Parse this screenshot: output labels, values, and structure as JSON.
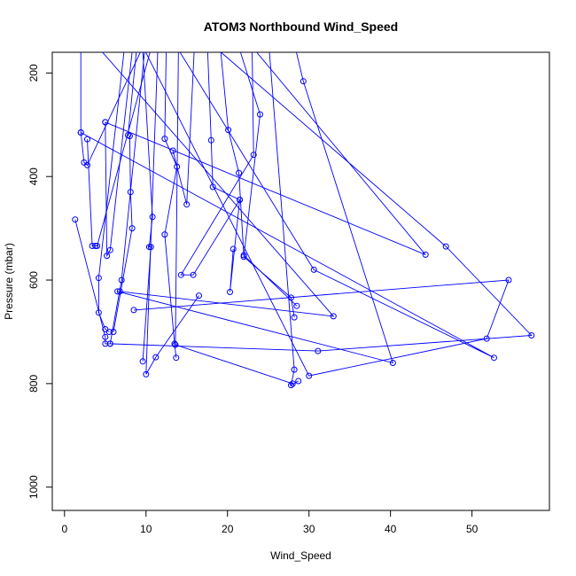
{
  "chart_data": {
    "type": "line",
    "title": "ATOM3 Northbound Wind_Speed",
    "xlabel": "Wind_Speed",
    "ylabel": "Pressure (mbar)",
    "xlim": [
      -1.5,
      59.5
    ],
    "ylim": [
      1045,
      160
    ],
    "y_reversed": true,
    "grid": false,
    "line_color": "#0000ff",
    "marker": "open-circle",
    "x_ticks": [
      {
        "value": 0,
        "label": "0"
      },
      {
        "value": 10,
        "label": "10"
      },
      {
        "value": 20,
        "label": "20"
      },
      {
        "value": 30,
        "label": "30"
      },
      {
        "value": 40,
        "label": "40"
      },
      {
        "value": 50,
        "label": "50"
      }
    ],
    "y_ticks": [
      {
        "value": 200,
        "label": "200"
      },
      {
        "value": 400,
        "label": "400"
      },
      {
        "value": 600,
        "label": "600"
      },
      {
        "value": 800,
        "label": "800"
      },
      {
        "value": 1000,
        "label": "1000"
      }
    ],
    "series": [
      {
        "points": [
          [
            2.0,
            130
          ],
          [
            2.0,
            315
          ],
          [
            2.4,
            373
          ],
          [
            2.8,
            378
          ],
          [
            10.2,
            130
          ]
        ]
      },
      {
        "points": [
          [
            2.8,
            328
          ],
          [
            3.4,
            534
          ],
          [
            3.8,
            534
          ],
          [
            4.0,
            534
          ],
          [
            11.0,
            130
          ]
        ]
      },
      {
        "points": [
          [
            5.0,
            295
          ],
          [
            5.2,
            553
          ],
          [
            5.6,
            542
          ],
          [
            8.5,
            130
          ]
        ]
      },
      {
        "points": [
          [
            1.3,
            483
          ],
          [
            5.0,
            710
          ],
          [
            5.0,
            723
          ],
          [
            5.6,
            723
          ],
          [
            7.0,
            600
          ],
          [
            10.0,
            130
          ]
        ]
      },
      {
        "points": [
          [
            7.5,
            130
          ],
          [
            4.2,
            596
          ],
          [
            4.2,
            663
          ],
          [
            5.0,
            695
          ],
          [
            5.5,
            700
          ]
        ]
      },
      {
        "points": [
          [
            9.0,
            130
          ],
          [
            7.8,
            320
          ],
          [
            8.0,
            322
          ],
          [
            8.1,
            430
          ],
          [
            8.3,
            500
          ],
          [
            6.0,
            700
          ]
        ]
      },
      {
        "points": [
          [
            9.5,
            130
          ],
          [
            10.8,
            478
          ],
          [
            10.4,
            536
          ],
          [
            10.6,
            536
          ],
          [
            9.6,
            757
          ]
        ]
      },
      {
        "points": [
          [
            11.5,
            130
          ],
          [
            10.0,
            782
          ],
          [
            11.2,
            749
          ],
          [
            16.5,
            630
          ]
        ]
      },
      {
        "points": [
          [
            12.5,
            130
          ],
          [
            12.3,
            327
          ],
          [
            13.8,
            381
          ],
          [
            12.3,
            512
          ],
          [
            13.5,
            723
          ],
          [
            13.7,
            750
          ]
        ]
      },
      {
        "points": [
          [
            14.0,
            130
          ],
          [
            13.6,
            725
          ],
          [
            28.0,
            800
          ]
        ]
      },
      {
        "points": [
          [
            16.0,
            130
          ],
          [
            15.0,
            454
          ],
          [
            13.3,
            350
          ]
        ]
      },
      {
        "points": [
          [
            17.5,
            130
          ],
          [
            18.0,
            330
          ],
          [
            18.2,
            420
          ],
          [
            21.5,
            445
          ],
          [
            20.3,
            623
          ],
          [
            20.7,
            540
          ]
        ]
      },
      {
        "points": [
          [
            19.0,
            130
          ],
          [
            20.1,
            310
          ],
          [
            21.4,
            393
          ],
          [
            22.0,
            552
          ],
          [
            28.5,
            650
          ]
        ]
      },
      {
        "points": [
          [
            21.0,
            130
          ],
          [
            24.0,
            280
          ],
          [
            22.0,
            555
          ],
          [
            27.8,
            634
          ],
          [
            28.2,
            672
          ]
        ]
      },
      {
        "points": [
          [
            23.0,
            130
          ],
          [
            23.2,
            358
          ],
          [
            14.3,
            590
          ],
          [
            15.8,
            590
          ],
          [
            21.5,
            445
          ]
        ]
      },
      {
        "points": [
          [
            25.0,
            130
          ],
          [
            28.2,
            773
          ],
          [
            27.8,
            803
          ],
          [
            28.7,
            795
          ]
        ]
      },
      {
        "points": [
          [
            28.0,
            130
          ],
          [
            29.3,
            216
          ],
          [
            40.3,
            760
          ],
          [
            6.5,
            622
          ]
        ]
      },
      {
        "points": [
          [
            9.0,
            130
          ],
          [
            30.0,
            785
          ],
          [
            51.8,
            713
          ],
          [
            54.5,
            600
          ],
          [
            8.5,
            658
          ]
        ]
      },
      {
        "points": [
          [
            13.0,
            130
          ],
          [
            30.6,
            580
          ],
          [
            52.7,
            750
          ],
          [
            2.0,
            315
          ]
        ]
      },
      {
        "points": [
          [
            17.0,
            130
          ],
          [
            46.8,
            535
          ],
          [
            57.3,
            707
          ],
          [
            31.1,
            737
          ],
          [
            5.6,
            723
          ]
        ]
      },
      {
        "points": [
          [
            22.0,
            130
          ],
          [
            44.3,
            551
          ],
          [
            5.0,
            295
          ]
        ]
      },
      {
        "points": [
          [
            3.0,
            130
          ],
          [
            33.0,
            670
          ],
          [
            6.8,
            622
          ]
        ]
      }
    ]
  }
}
